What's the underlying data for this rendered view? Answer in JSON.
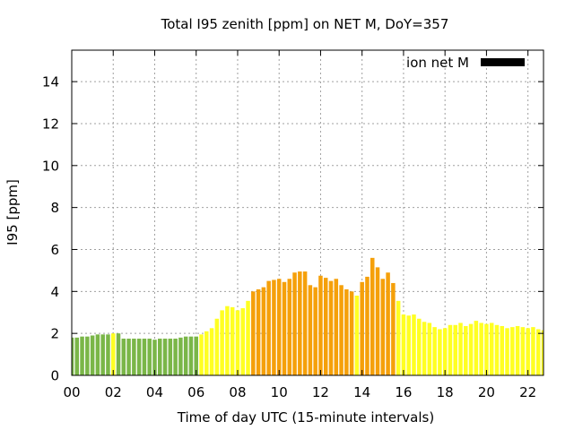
{
  "chart_data": {
    "type": "bar",
    "title": "Total I95 zenith [ppm] on NET M, DoY=357",
    "xlabel": "Time of day UTC (15-minute intervals)",
    "ylabel": "I95 [ppm]",
    "xlim": [
      0,
      22.75
    ],
    "ylim": [
      0,
      15.5
    ],
    "x_ticks": [
      "00",
      "02",
      "04",
      "06",
      "08",
      "10",
      "12",
      "14",
      "16",
      "18",
      "20",
      "22"
    ],
    "x_tick_values": [
      0,
      2,
      4,
      6,
      8,
      10,
      12,
      14,
      16,
      18,
      20,
      22
    ],
    "y_ticks": [
      0,
      2,
      4,
      6,
      8,
      10,
      12,
      14
    ],
    "grid": true,
    "legend": {
      "label": "ion net M",
      "placement": "top-right",
      "color": "#000000"
    },
    "bar_interval_hours": 0.25,
    "colors": {
      "low": "#7ab648",
      "medium": "#ffff22",
      "high": "#f5a00a",
      "frame": "#000000",
      "grid": "#a0a0a0"
    },
    "bars_x_start": 0,
    "values": [
      1.8,
      1.8,
      1.85,
      1.85,
      1.9,
      1.95,
      1.95,
      1.95,
      2.0,
      2.0,
      1.75,
      1.75,
      1.75,
      1.75,
      1.75,
      1.75,
      1.7,
      1.75,
      1.75,
      1.75,
      1.75,
      1.8,
      1.85,
      1.85,
      1.85,
      1.95,
      2.1,
      2.25,
      2.7,
      3.1,
      3.3,
      3.25,
      3.1,
      3.2,
      3.55,
      4.0,
      4.1,
      4.2,
      4.5,
      4.55,
      4.6,
      4.45,
      4.6,
      4.9,
      4.95,
      4.95,
      4.3,
      4.2,
      4.75,
      4.65,
      4.5,
      4.6,
      4.3,
      4.1,
      4.0,
      3.8,
      4.45,
      4.7,
      5.6,
      5.15,
      4.6,
      4.9,
      4.4,
      3.55,
      2.9,
      2.85,
      2.9,
      2.7,
      2.55,
      2.5,
      2.3,
      2.2,
      2.25,
      2.4,
      2.4,
      2.5,
      2.35,
      2.45,
      2.6,
      2.5,
      2.45,
      2.5,
      2.4,
      2.35,
      2.25,
      2.3,
      2.35,
      2.3,
      2.25,
      2.3,
      2.2,
      2.15,
      2.05
    ],
    "levels": [
      "low",
      "low",
      "low",
      "low",
      "low",
      "low",
      "low",
      "low",
      "medium",
      "low",
      "low",
      "low",
      "low",
      "low",
      "low",
      "low",
      "low",
      "low",
      "low",
      "low",
      "low",
      "low",
      "low",
      "low",
      "low",
      "medium",
      "medium",
      "medium",
      "medium",
      "medium",
      "medium",
      "medium",
      "medium",
      "medium",
      "medium",
      "high",
      "high",
      "high",
      "high",
      "high",
      "high",
      "high",
      "high",
      "high",
      "high",
      "high",
      "high",
      "high",
      "high",
      "high",
      "high",
      "high",
      "high",
      "high",
      "high",
      "medium",
      "high",
      "high",
      "high",
      "high",
      "high",
      "high",
      "high",
      "medium",
      "medium",
      "medium",
      "medium",
      "medium",
      "medium",
      "medium",
      "medium",
      "medium",
      "medium",
      "medium",
      "medium",
      "medium",
      "medium",
      "medium",
      "medium",
      "medium",
      "medium",
      "medium",
      "medium",
      "medium",
      "medium",
      "medium",
      "medium",
      "medium",
      "medium",
      "medium",
      "medium",
      "medium",
      "medium"
    ]
  }
}
